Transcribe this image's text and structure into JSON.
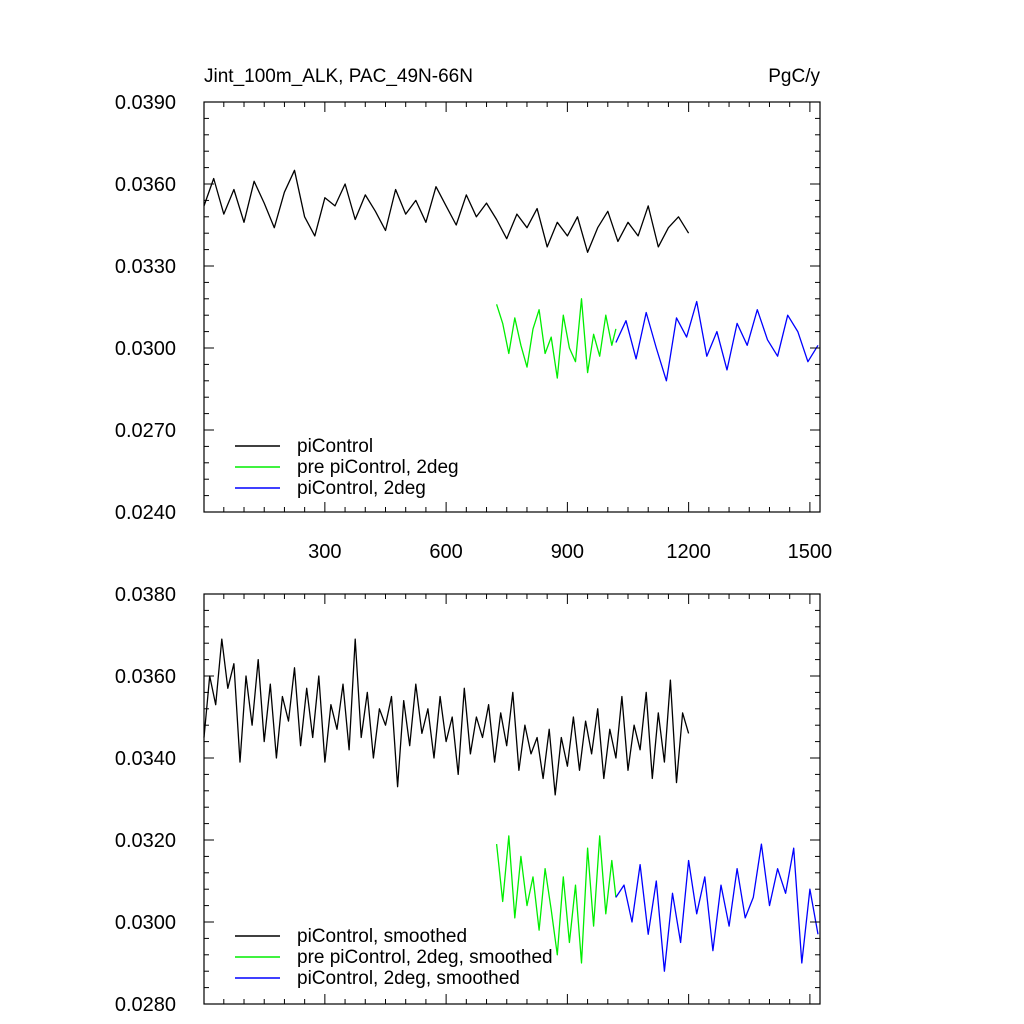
{
  "chart_data": [
    {
      "type": "line",
      "title": "Jint_100m_ALK, PAC_49N-66N",
      "units": "PgC/y",
      "xlabel": "",
      "ylabel": "",
      "xlim": [
        1,
        1525
      ],
      "ylim": [
        0.024,
        0.039
      ],
      "xticks": [
        300,
        600,
        900,
        1200,
        1500
      ],
      "xtick_labels": [
        "300",
        "600",
        "900",
        "1200",
        "1500"
      ],
      "yticks": [
        0.024,
        0.027,
        0.03,
        0.033,
        0.036,
        0.039
      ],
      "ytick_labels": [
        "0.0240",
        "0.0270",
        "0.0300",
        "0.0330",
        "0.0360",
        "0.0390"
      ],
      "legend_position": "bottom-left",
      "series": [
        {
          "name": "piControl",
          "color": "#000000",
          "x": [
            1,
            25,
            50,
            75,
            100,
            125,
            150,
            175,
            200,
            225,
            250,
            275,
            300,
            325,
            350,
            375,
            400,
            425,
            450,
            475,
            500,
            525,
            550,
            575,
            600,
            625,
            650,
            675,
            700,
            725,
            750,
            775,
            800,
            825,
            850,
            875,
            900,
            925,
            950,
            975,
            1000,
            1025,
            1050,
            1075,
            1100,
            1125,
            1150,
            1175,
            1200
          ],
          "values": [
            0.0352,
            0.0362,
            0.0349,
            0.0358,
            0.0346,
            0.0361,
            0.0353,
            0.0344,
            0.0357,
            0.0365,
            0.0348,
            0.0341,
            0.0355,
            0.0352,
            0.036,
            0.0347,
            0.0356,
            0.035,
            0.0343,
            0.0358,
            0.0349,
            0.0354,
            0.0346,
            0.0359,
            0.0352,
            0.0345,
            0.0356,
            0.0348,
            0.0353,
            0.0347,
            0.034,
            0.0349,
            0.0344,
            0.0351,
            0.0337,
            0.0346,
            0.0341,
            0.0348,
            0.0335,
            0.0344,
            0.035,
            0.0339,
            0.0346,
            0.0341,
            0.0352,
            0.0337,
            0.0344,
            0.0348,
            0.0342
          ]
        },
        {
          "name": "pre piControl, 2deg",
          "color": "#00ee00",
          "x": [
            725,
            740,
            755,
            770,
            785,
            800,
            815,
            830,
            845,
            860,
            875,
            890,
            905,
            920,
            935,
            950,
            965,
            980,
            995,
            1010,
            1020
          ],
          "values": [
            0.0316,
            0.0309,
            0.0298,
            0.0311,
            0.0301,
            0.0293,
            0.0307,
            0.0314,
            0.0298,
            0.0304,
            0.0289,
            0.0312,
            0.03,
            0.0295,
            0.0318,
            0.0291,
            0.0305,
            0.0297,
            0.0312,
            0.0301,
            0.0307
          ]
        },
        {
          "name": "piControl, 2deg",
          "color": "#0000ff",
          "x": [
            1020,
            1045,
            1070,
            1095,
            1120,
            1145,
            1170,
            1195,
            1220,
            1245,
            1270,
            1295,
            1320,
            1345,
            1370,
            1395,
            1420,
            1445,
            1470,
            1495,
            1520
          ],
          "values": [
            0.0302,
            0.031,
            0.0296,
            0.0313,
            0.03,
            0.0288,
            0.0311,
            0.0304,
            0.0317,
            0.0297,
            0.0306,
            0.0292,
            0.0309,
            0.0301,
            0.0314,
            0.0303,
            0.0297,
            0.0312,
            0.0306,
            0.0295,
            0.0301
          ]
        }
      ]
    },
    {
      "type": "line",
      "title": "",
      "xlabel": "",
      "ylabel": "",
      "xlim": [
        1,
        1525
      ],
      "ylim": [
        0.028,
        0.038
      ],
      "xticks": [
        300,
        600,
        900,
        1200,
        1500
      ],
      "xtick_labels": [],
      "yticks": [
        0.028,
        0.03,
        0.032,
        0.034,
        0.036,
        0.038
      ],
      "ytick_labels": [
        "0.0280",
        "0.0300",
        "0.0320",
        "0.0340",
        "0.0360",
        "0.0380"
      ],
      "legend_position": "bottom-left",
      "series": [
        {
          "name": "piControl, smoothed",
          "color": "#000000",
          "x": [
            1,
            15,
            30,
            45,
            60,
            75,
            90,
            105,
            120,
            135,
            150,
            165,
            180,
            195,
            210,
            225,
            240,
            255,
            270,
            285,
            300,
            315,
            330,
            345,
            360,
            375,
            390,
            405,
            420,
            435,
            450,
            465,
            480,
            495,
            510,
            525,
            540,
            555,
            570,
            585,
            600,
            615,
            630,
            645,
            660,
            675,
            690,
            705,
            720,
            735,
            750,
            765,
            780,
            795,
            810,
            825,
            840,
            855,
            870,
            885,
            900,
            915,
            930,
            945,
            960,
            975,
            990,
            1005,
            1020,
            1035,
            1050,
            1065,
            1080,
            1095,
            1110,
            1125,
            1140,
            1155,
            1170,
            1185,
            1200
          ],
          "values": [
            0.0345,
            0.036,
            0.0353,
            0.0369,
            0.0357,
            0.0363,
            0.0339,
            0.036,
            0.0348,
            0.0364,
            0.0344,
            0.0358,
            0.034,
            0.0355,
            0.0349,
            0.0362,
            0.0343,
            0.0357,
            0.0345,
            0.036,
            0.0339,
            0.0353,
            0.0347,
            0.0358,
            0.0342,
            0.0369,
            0.0345,
            0.0356,
            0.034,
            0.0352,
            0.0348,
            0.0355,
            0.0333,
            0.0354,
            0.0343,
            0.0358,
            0.0346,
            0.0352,
            0.034,
            0.0355,
            0.0344,
            0.035,
            0.0336,
            0.0357,
            0.0341,
            0.035,
            0.0345,
            0.0353,
            0.0339,
            0.0351,
            0.0343,
            0.0356,
            0.0337,
            0.0348,
            0.0341,
            0.0345,
            0.0335,
            0.0347,
            0.0331,
            0.0345,
            0.0338,
            0.035,
            0.0337,
            0.0349,
            0.0341,
            0.0352,
            0.0335,
            0.0347,
            0.034,
            0.0355,
            0.0337,
            0.0348,
            0.0342,
            0.0356,
            0.0335,
            0.0351,
            0.0339,
            0.0359,
            0.0334,
            0.0351,
            0.0346
          ]
        },
        {
          "name": "pre piControl, 2deg, smoothed",
          "color": "#00ee00",
          "x": [
            725,
            740,
            755,
            770,
            785,
            800,
            815,
            830,
            845,
            860,
            875,
            890,
            905,
            920,
            935,
            950,
            965,
            980,
            995,
            1010,
            1020
          ],
          "values": [
            0.0319,
            0.0305,
            0.0321,
            0.0301,
            0.0316,
            0.0304,
            0.0311,
            0.0298,
            0.0313,
            0.0303,
            0.0292,
            0.0311,
            0.0295,
            0.0309,
            0.029,
            0.0318,
            0.0299,
            0.0321,
            0.0302,
            0.0315,
            0.0306
          ]
        },
        {
          "name": "piControl, 2deg, smoothed",
          "color": "#0000ff",
          "x": [
            1020,
            1040,
            1060,
            1080,
            1100,
            1120,
            1140,
            1160,
            1180,
            1200,
            1220,
            1240,
            1260,
            1280,
            1300,
            1320,
            1340,
            1360,
            1380,
            1400,
            1420,
            1440,
            1460,
            1480,
            1500,
            1520
          ],
          "values": [
            0.0306,
            0.0309,
            0.03,
            0.0314,
            0.0297,
            0.031,
            0.0288,
            0.0307,
            0.0295,
            0.0315,
            0.0302,
            0.0311,
            0.0293,
            0.0309,
            0.0299,
            0.0313,
            0.0301,
            0.0306,
            0.0319,
            0.0304,
            0.0313,
            0.0307,
            0.0318,
            0.029,
            0.0308,
            0.0297
          ]
        }
      ]
    }
  ]
}
